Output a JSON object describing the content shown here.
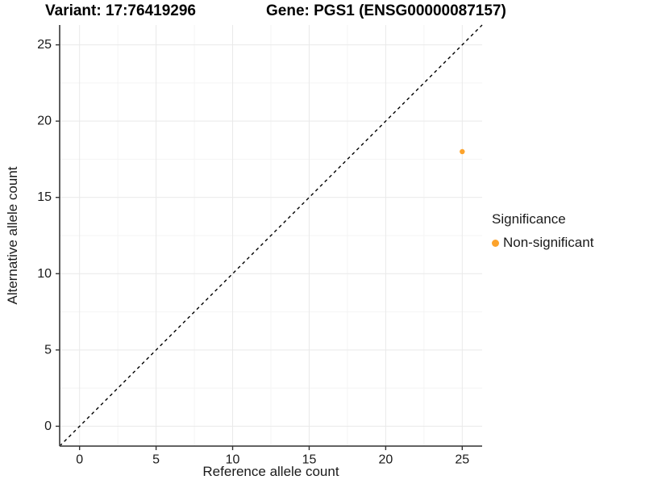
{
  "titles": {
    "variant": "Variant: 17:76419296",
    "gene": "Gene: PGS1 (ENSG00000087157)"
  },
  "legend": {
    "title": "Significance",
    "items": [
      {
        "label": "Non-significant",
        "color": "#FCA32C"
      }
    ]
  },
  "chart_data": {
    "type": "scatter",
    "title": "Variant: 17:76419296 — Gene: PGS1 (ENSG00000087157)",
    "xlabel": "Reference allele count",
    "ylabel": "Alternative allele count",
    "xlim": [
      -1.3,
      26.3
    ],
    "ylim": [
      -1.3,
      26.3
    ],
    "x_ticks": [
      0,
      5,
      10,
      15,
      20,
      25
    ],
    "y_ticks": [
      0,
      5,
      10,
      15,
      20,
      25
    ],
    "x_minor_ticks": [
      2.5,
      7.5,
      12.5,
      17.5,
      22.5
    ],
    "y_minor_ticks": [
      2.5,
      7.5,
      12.5,
      17.5,
      22.5
    ],
    "grid": true,
    "legend_position": "right",
    "series": [
      {
        "name": "Non-significant",
        "color": "#FCA32C",
        "points": [
          {
            "x": 25,
            "y": 18
          }
        ]
      }
    ],
    "reference_line": {
      "slope": 1,
      "intercept": 0,
      "style": "dashed",
      "color": "#000000"
    }
  },
  "colors": {
    "background": "#FFFFFF",
    "axis_line": "#4D4D4D",
    "tick_mark": "#333333",
    "grid_major": "#E9E9E9",
    "grid_minor": "#F4F4F4",
    "tick_label": "#1A1A1A",
    "title_text": "#000000"
  }
}
